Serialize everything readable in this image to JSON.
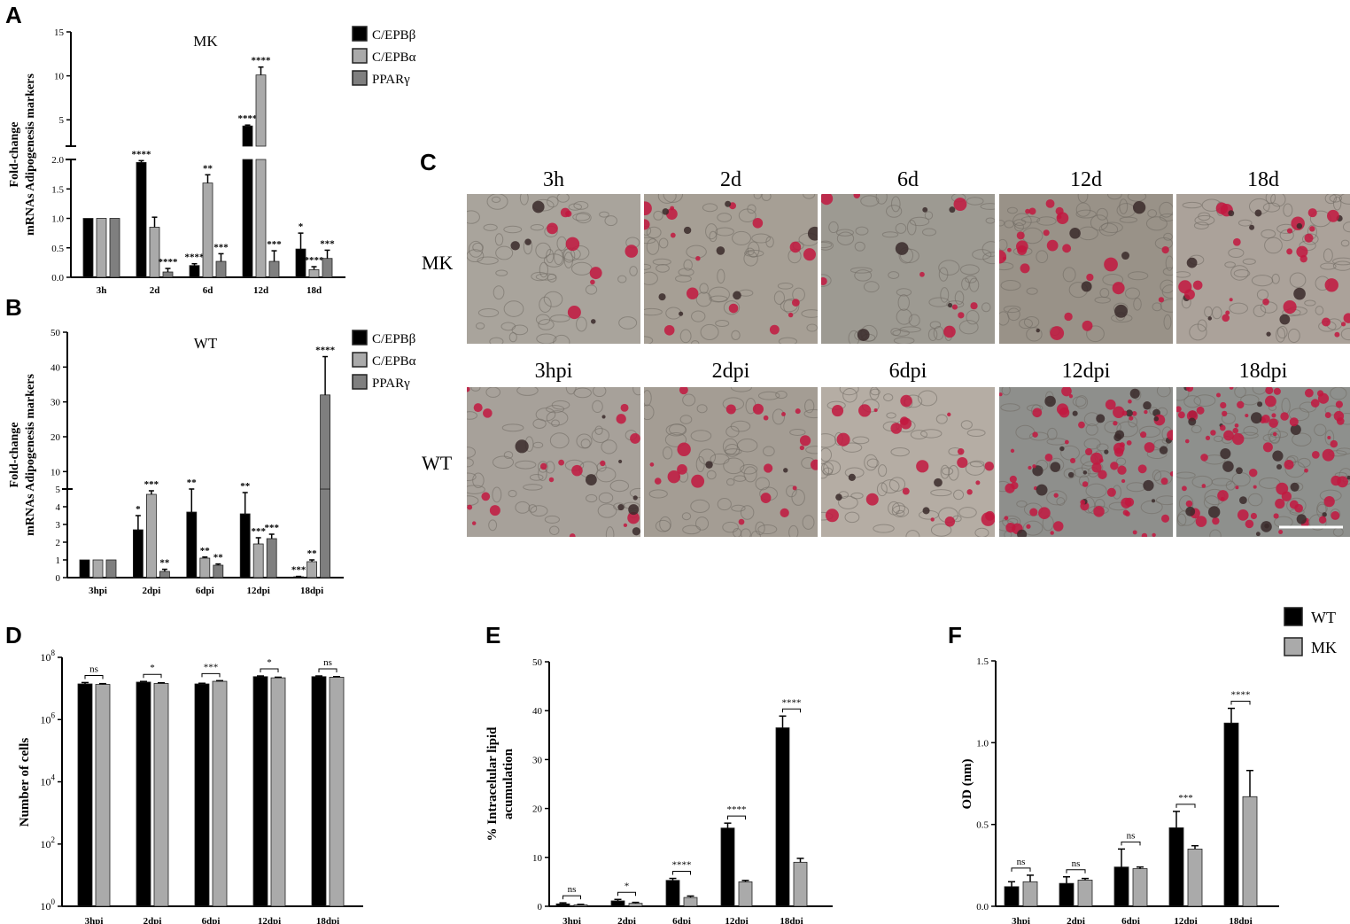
{
  "panels": {
    "A": {
      "label": "A",
      "title": "MK",
      "ylabel_line1": "Fold-change",
      "ylabel_line2": "mRNAs Adipogenesis markers",
      "categories": [
        "3h",
        "2d",
        "6d",
        "12d",
        "18d"
      ],
      "legend": [
        "C/EPBβ",
        "C/EPBα",
        "PPARγ"
      ],
      "colors": [
        "#000000",
        "#aaaaaa",
        "#7f7f7f"
      ],
      "lower_ticks": [
        "0.0",
        "0.5",
        "1.0",
        "1.5",
        "2.0"
      ],
      "upper_ticks": [
        "5",
        "10",
        "15"
      ]
    },
    "B": {
      "label": "B",
      "title": "WT",
      "ylabel_line1": "Fold-change",
      "ylabel_line2": "mRNAs Adipogenesis markers",
      "categories": [
        "3hpi",
        "2dpi",
        "6dpi",
        "12dpi",
        "18dpi"
      ],
      "legend": [
        "C/EPBβ",
        "C/EPBα",
        "PPARγ"
      ],
      "colors": [
        "#000000",
        "#aaaaaa",
        "#7f7f7f"
      ],
      "lower_ticks": [
        "0",
        "1",
        "2",
        "3",
        "4",
        "5"
      ],
      "upper_ticks": [
        "10",
        "20",
        "30",
        "40",
        "50"
      ]
    },
    "C": {
      "label": "C",
      "row1_label": "MK",
      "row2_label": "WT",
      "row1_titles": [
        "3h",
        "2d",
        "6d",
        "12d",
        "18d"
      ],
      "row2_titles": [
        "3hpi",
        "2dpi",
        "6dpi",
        "12dpi",
        "18dpi"
      ]
    },
    "D": {
      "label": "D",
      "ylabel": "Number of cells",
      "categories": [
        "3hpi",
        "2dpi",
        "6dpi",
        "12dpi",
        "18dpi"
      ]
    },
    "E": {
      "label": "E",
      "ylabel_line1": "% Intracelular lipid",
      "ylabel_line2": "acumulation",
      "categories": [
        "3hpi",
        "2dpi",
        "6dpi",
        "12dpi",
        "18dpi"
      ],
      "ticks": [
        "0",
        "10",
        "20",
        "30",
        "40",
        "50"
      ]
    },
    "F": {
      "label": "F",
      "ylabel": "OD (nm)",
      "categories": [
        "3hpi",
        "2dpi",
        "6dpi",
        "12dpi",
        "18dpi"
      ],
      "ticks": [
        "0.0",
        "0.5",
        "1.0",
        "1.5"
      ],
      "legend": [
        "WT",
        "MK"
      ],
      "colors": [
        "#000000",
        "#aaaaaa"
      ]
    }
  },
  "chart_data": [
    {
      "panel": "A",
      "type": "bar",
      "title": "MK",
      "categories": [
        "3h",
        "2d",
        "6d",
        "12d",
        "18d"
      ],
      "ylabel": "Fold-change mRNAs Adipogenesis markers",
      "ylim": [
        0,
        15
      ],
      "axis_break": [
        2.0,
        2.0
      ],
      "series": [
        {
          "name": "C/EPBβ",
          "values": [
            1.0,
            1.95,
            0.2,
            4.3,
            0.48
          ],
          "errors": [
            0,
            0.03,
            0.03,
            0.1,
            0.27
          ],
          "sig": [
            "",
            "****",
            "****",
            "****",
            "*"
          ]
        },
        {
          "name": "C/EPBα",
          "values": [
            1.0,
            0.85,
            1.6,
            10.1,
            0.13
          ],
          "errors": [
            0,
            0.17,
            0.14,
            0.9,
            0.05
          ],
          "sig": [
            "",
            "",
            "**",
            "****",
            "****"
          ]
        },
        {
          "name": "PPARγ",
          "values": [
            1.0,
            0.09,
            0.27,
            0.27,
            0.32
          ],
          "errors": [
            0,
            0.06,
            0.13,
            0.18,
            0.14
          ],
          "sig": [
            "",
            "****",
            "***",
            "***",
            "***"
          ]
        }
      ]
    },
    {
      "panel": "B",
      "type": "bar",
      "title": "WT",
      "categories": [
        "3hpi",
        "2dpi",
        "6dpi",
        "12dpi",
        "18dpi"
      ],
      "ylabel": "Fold-change mRNAs Adipogenesis markers",
      "ylim": [
        0,
        50
      ],
      "axis_break": [
        5,
        5
      ],
      "series": [
        {
          "name": "C/EPBβ",
          "values": [
            1.0,
            2.7,
            3.7,
            3.6,
            0.05
          ],
          "errors": [
            0,
            0.8,
            1.3,
            1.2,
            0.02
          ],
          "sig": [
            "",
            "*",
            "**",
            "**",
            "***"
          ]
        },
        {
          "name": "C/EPBα",
          "values": [
            1.0,
            4.7,
            1.1,
            1.9,
            0.9
          ],
          "errors": [
            0,
            0.2,
            0.06,
            0.35,
            0.1
          ],
          "sig": [
            "",
            "***",
            "**",
            "***",
            "**"
          ]
        },
        {
          "name": "PPARγ",
          "values": [
            1.0,
            0.35,
            0.7,
            2.2,
            32.0
          ],
          "errors": [
            0,
            0.12,
            0.07,
            0.25,
            11.0
          ],
          "sig": [
            "",
            "**",
            "**",
            "***",
            "****"
          ]
        }
      ]
    },
    {
      "panel": "D",
      "type": "bar",
      "categories": [
        "3hpi",
        "2dpi",
        "6dpi",
        "12dpi",
        "18dpi"
      ],
      "ylabel": "Number of cells",
      "yscale": "log",
      "ylim": [
        1,
        100000000
      ],
      "series": [
        {
          "name": "WT",
          "values": [
            14000000,
            16000000,
            14000000,
            24000000,
            24000000
          ],
          "errors": [
            1500000,
            800000,
            700000,
            1200000,
            1200000
          ]
        },
        {
          "name": "MK",
          "values": [
            13500000,
            14500000,
            17000000,
            22000000,
            23000000
          ],
          "errors": [
            800000,
            700000,
            800000,
            1000000,
            1000000
          ]
        }
      ],
      "significance": [
        "ns",
        "*",
        "***",
        "*",
        "ns"
      ]
    },
    {
      "panel": "E",
      "type": "bar",
      "categories": [
        "3hpi",
        "2dpi",
        "6dpi",
        "12dpi",
        "18dpi"
      ],
      "ylabel": "% Intracelular lipid acumulation",
      "ylim": [
        0,
        50
      ],
      "series": [
        {
          "name": "WT",
          "values": [
            0.5,
            1.1,
            5.3,
            16.0,
            36.5
          ],
          "errors": [
            0.2,
            0.3,
            0.4,
            1.0,
            2.4
          ]
        },
        {
          "name": "MK",
          "values": [
            0.3,
            0.6,
            1.8,
            5.0,
            9.0
          ],
          "errors": [
            0.1,
            0.2,
            0.3,
            0.3,
            0.8
          ]
        }
      ],
      "significance": [
        "ns",
        "*",
        "****",
        "****",
        "****"
      ]
    },
    {
      "panel": "F",
      "type": "bar",
      "categories": [
        "3hpi",
        "2dpi",
        "6dpi",
        "12dpi",
        "18dpi"
      ],
      "ylabel": "OD (nm)",
      "ylim": [
        0,
        1.5
      ],
      "series": [
        {
          "name": "WT",
          "values": [
            0.12,
            0.14,
            0.24,
            0.48,
            1.12
          ],
          "errors": [
            0.03,
            0.04,
            0.11,
            0.1,
            0.09
          ]
        },
        {
          "name": "MK",
          "values": [
            0.15,
            0.16,
            0.23,
            0.35,
            0.67
          ],
          "errors": [
            0.04,
            0.01,
            0.01,
            0.02,
            0.16
          ]
        }
      ],
      "significance": [
        "ns",
        "ns",
        "ns",
        "***",
        "****"
      ]
    }
  ]
}
